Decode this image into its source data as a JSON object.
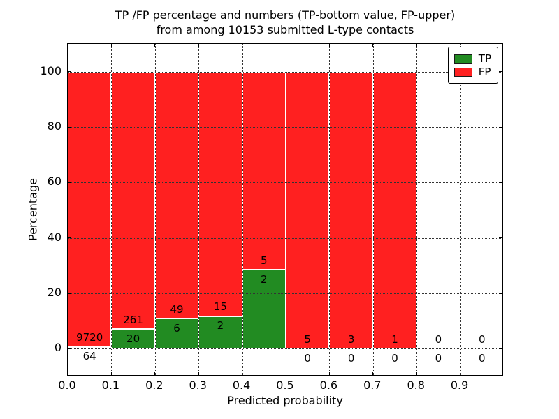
{
  "title": {
    "line1": "TP /FP percentage and numbers (TP-bottom value, FP-upper)",
    "line2": "from among 10153 submitted L-type contacts"
  },
  "axes": {
    "xlabel": "Predicted probability",
    "ylabel": "Percentage",
    "x_tick_labels": [
      "0.0",
      "0.1",
      "0.2",
      "0.3",
      "0.4",
      "0.5",
      "0.6",
      "0.7",
      "0.8",
      "0.9"
    ],
    "y_tick_labels": [
      "0",
      "20",
      "40",
      "60",
      "80",
      "100"
    ]
  },
  "legend": {
    "position": "upper-right",
    "items": [
      {
        "label": "TP",
        "color": "#228B22"
      },
      {
        "label": "FP",
        "color": "#FF2020"
      }
    ]
  },
  "chart_data": {
    "type": "bar",
    "stacked": true,
    "normalized": "each bin stacked to 100%",
    "title": "TP /FP percentage and numbers (TP-bottom value, FP-upper) from among 10153 submitted L-type contacts",
    "xlabel": "Predicted probability",
    "ylabel": "Percentage",
    "total_contacts": 10153,
    "bin_width": 0.1,
    "bin_starts": [
      0.0,
      0.1,
      0.2,
      0.3,
      0.4,
      0.5,
      0.6,
      0.7,
      0.8,
      0.9
    ],
    "x_tick_labels": [
      "0.0",
      "0.1",
      "0.2",
      "0.3",
      "0.4",
      "0.5",
      "0.6",
      "0.7",
      "0.8",
      "0.9"
    ],
    "y_ticks": [
      0,
      20,
      40,
      60,
      80,
      100
    ],
    "xlim": [
      0.0,
      1.0
    ],
    "ylim": [
      -10,
      110
    ],
    "grid": "dotted",
    "legend_position": "upper-right",
    "series": [
      {
        "name": "TP",
        "color": "#228B22",
        "counts": [
          64,
          20,
          6,
          2,
          2,
          0,
          0,
          0,
          0,
          0
        ]
      },
      {
        "name": "FP",
        "color": "#FF2020",
        "counts": [
          9720,
          261,
          49,
          15,
          5,
          5,
          3,
          1,
          0,
          0
        ]
      }
    ],
    "tp_percent_by_bin": [
      0.65,
      7.12,
      10.91,
      11.76,
      28.57,
      0.0,
      0.0,
      0.0,
      null,
      null
    ]
  }
}
